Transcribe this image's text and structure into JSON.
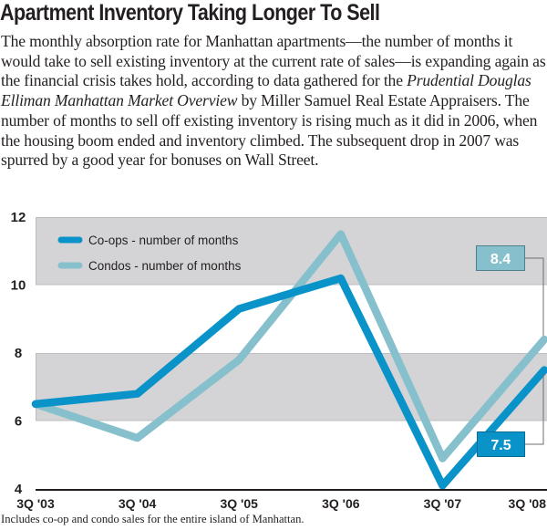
{
  "header": {
    "title": "Apartment Inventory Taking Longer To Sell",
    "deck_before": "The monthly absorption rate for Manhattan apartments—the number of months it would take to sell existing inventory at the current rate of sales—is expanding again as the financial crisis takes hold, according to data gathered for the ",
    "deck_publication": "Prudential Douglas Elliman Manhattan Market Overview",
    "deck_after": " by Miller Samuel Real Estate Appraisers. The number of months to sell off existing inventory is rising much as it did in 2006, when the housing boom ended and inventory climbed. The subsequent drop in 2007 was spurred by a good year for bonuses on Wall Street."
  },
  "footnote": "Includes co-op and condo sales for the entire island of Manhattan.",
  "colors": {
    "coops": "#0a93c9",
    "condos": "#86c0cc",
    "band": "#d4d4d6",
    "band_edge": "#bdbdbf",
    "axis": "#231f20",
    "leader": "#6d6e70"
  },
  "chart_data": {
    "type": "line",
    "title": "Apartment Inventory Taking Longer To Sell",
    "xlabel": "",
    "ylabel": "Number of months",
    "categories": [
      "3Q '03",
      "3Q '04",
      "3Q '05",
      "3Q '06",
      "3Q '07",
      "3Q '08"
    ],
    "ylim": [
      4,
      12
    ],
    "yticks": [
      4,
      6,
      8,
      10,
      12
    ],
    "ytick_labels": [
      "4",
      "6",
      "8",
      "10",
      "12"
    ],
    "grid": "alternating horizontal bands (10-12 and 6-8 shaded)",
    "legend_position": "top-left",
    "series": [
      {
        "name": "Co-ops - number of months",
        "key": "coops",
        "values": [
          6.5,
          6.8,
          9.3,
          10.2,
          4.1,
          7.5
        ],
        "end_label": "7.5"
      },
      {
        "name": "Condos - number of months",
        "key": "condos",
        "values": [
          6.5,
          5.5,
          7.8,
          11.5,
          4.9,
          8.4
        ],
        "end_label": "8.4"
      }
    ]
  }
}
